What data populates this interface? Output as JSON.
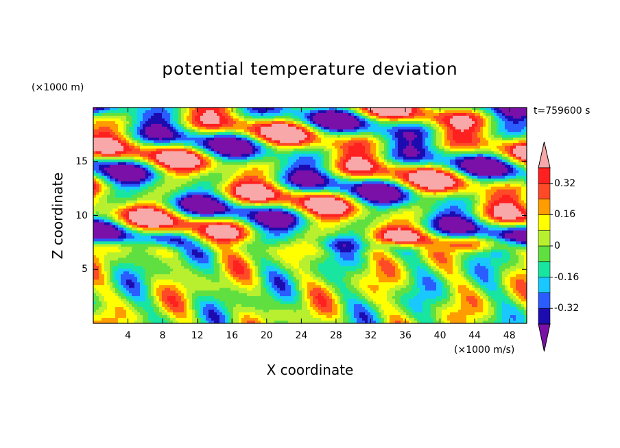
{
  "chart_data": {
    "type": "heatmap",
    "title": "potential temperature deviation",
    "timestamp": "t=759600 s",
    "xlabel": "X coordinate",
    "ylabel": "Z coordinate",
    "x_unit": "(×1000 m/s)",
    "y_unit": "(×1000 m)",
    "xlim": [
      0,
      50
    ],
    "ylim": [
      0,
      20
    ],
    "x_ticks": [
      4,
      8,
      12,
      16,
      20,
      24,
      28,
      32,
      36,
      40,
      44,
      48
    ],
    "y_ticks": [
      5,
      10,
      15
    ],
    "colorbar": {
      "levels": [
        -0.4,
        -0.32,
        -0.24,
        -0.16,
        -0.08,
        0,
        0.08,
        0.16,
        0.24,
        0.32,
        0.4
      ],
      "colors": [
        "#7a10a8",
        "#1c0cb0",
        "#2a5cff",
        "#18c8ff",
        "#18e6a0",
        "#60e040",
        "#b8f030",
        "#ffff00",
        "#ff9c00",
        "#ff4a28",
        "#ff2020",
        "#f8a8a8"
      ],
      "tick_labels": [
        "0.32",
        "0.16",
        "0",
        "-0.16",
        "-0.32"
      ],
      "tick_values": [
        0.32,
        0.16,
        0,
        -0.16,
        -0.32
      ],
      "extend": "both"
    }
  }
}
